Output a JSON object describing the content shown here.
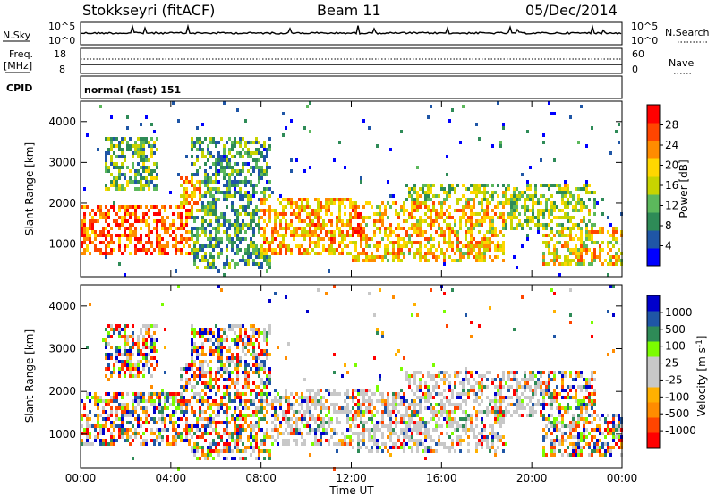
{
  "header": {
    "station": "Stokkseyri (fitACF)",
    "beam": "Beam 11",
    "date": "05/Dec/2014"
  },
  "strip": {
    "nsky_label": "N.Sky",
    "nsky_ticks": [
      "10^5",
      "10^0"
    ],
    "nsearch_label": "N.Search",
    "nsearch_ticks": [
      "10^5",
      "10^0"
    ],
    "freq_label": "Freq.",
    "freq_unit": "[MHz]",
    "freq_ticks": [
      "18",
      "8"
    ],
    "nave_label": "Nave",
    "nave_ticks": [
      "60",
      "0"
    ],
    "cpid_label": "CPID",
    "cpid_value": "normal (fast) 151"
  },
  "colors": {
    "power_scale": [
      "#0000ff",
      "#1f56a6",
      "#2e8b57",
      "#5cb85c",
      "#c8d400",
      "#ffd700",
      "#ff8c00",
      "#ff4500",
      "#ff0000"
    ],
    "velocity_scale": [
      "#ff0000",
      "#ff4500",
      "#ff8c00",
      "#ffb000",
      "#c8c8c8",
      "#c8c8c8",
      "#7cfc00",
      "#2e8b57",
      "#1f56a6",
      "#0000cc"
    ]
  },
  "chart_data": [
    {
      "type": "heatmap",
      "panel": "power",
      "ylabel": "Slant Range [km]",
      "yticks": [
        "4000",
        "3000",
        "2000",
        "1000"
      ],
      "ylim": [
        200,
        4500
      ],
      "colorbar_label": "Power [dB]",
      "colorbar_ticks": [
        "28",
        "24",
        "20",
        "16",
        "12",
        "8",
        "4"
      ],
      "colorbar_range": [
        0,
        32
      ]
    },
    {
      "type": "heatmap",
      "panel": "velocity",
      "ylabel": "Slant Range [km]",
      "yticks": [
        "4000",
        "3000",
        "2000",
        "1000"
      ],
      "ylim": [
        200,
        4500
      ],
      "colorbar_label": "Velocity [m s",
      "colorbar_label_sup": "-1",
      "colorbar_label_end": "]",
      "colorbar_ticks": [
        "1000",
        "500",
        "100",
        "25",
        "-25",
        "-100",
        "-500",
        "-1000"
      ],
      "xticks": [
        "00:00",
        "04:00",
        "08:00",
        "12:00",
        "16:00",
        "20:00",
        "00:00"
      ],
      "xlabel": "Time UT"
    }
  ]
}
